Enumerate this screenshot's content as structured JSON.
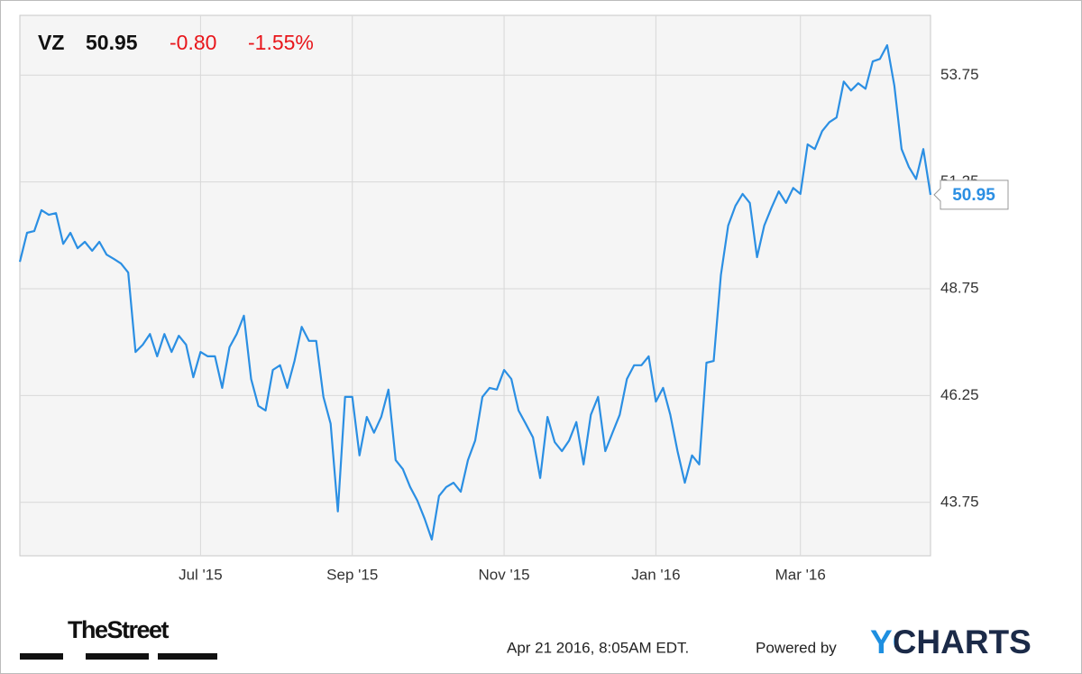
{
  "header": {
    "ticker": "VZ",
    "price": "50.95",
    "change": "-0.80",
    "change_pct": "-1.55%"
  },
  "footer": {
    "brand": "TheStreet",
    "timestamp": "Apr 21 2016, 8:05AM EDT.",
    "powered": "Powered by",
    "logo": "YCHARTS"
  },
  "chart_data": {
    "type": "line",
    "color": "#2b8fe3",
    "grid": true,
    "categories": [
      null,
      null,
      null,
      null,
      null,
      null,
      null,
      null,
      null,
      null,
      null,
      null,
      null,
      null,
      null,
      null,
      null,
      null,
      null,
      null,
      null,
      null,
      null,
      null,
      null,
      "Jul '15",
      null,
      null,
      null,
      null,
      null,
      null,
      null,
      null,
      null,
      null,
      null,
      null,
      null,
      null,
      null,
      null,
      null,
      null,
      null,
      null,
      "Sep '15",
      null,
      null,
      null,
      null,
      null,
      null,
      null,
      null,
      null,
      null,
      null,
      null,
      null,
      null,
      null,
      null,
      null,
      null,
      null,
      null,
      "Nov '15",
      null,
      null,
      null,
      null,
      null,
      null,
      null,
      null,
      null,
      null,
      null,
      null,
      null,
      null,
      null,
      null,
      null,
      null,
      null,
      null,
      "Jan '16",
      null,
      null,
      null,
      null,
      null,
      null,
      null,
      null,
      null,
      null,
      null,
      null,
      null,
      null,
      null,
      null,
      null,
      null,
      null,
      "Mar '16",
      null,
      null,
      null,
      null,
      null,
      null,
      null,
      null,
      null,
      null,
      null,
      null,
      null,
      null,
      null,
      null,
      null,
      null
    ],
    "values": [
      49.38,
      50.06,
      50.1,
      50.59,
      50.48,
      50.52,
      49.8,
      50.06,
      49.7,
      49.85,
      49.64,
      49.85,
      49.55,
      49.45,
      49.34,
      49.13,
      47.27,
      47.44,
      47.69,
      47.17,
      47.69,
      47.27,
      47.65,
      47.44,
      46.68,
      47.27,
      47.17,
      47.17,
      46.43,
      47.38,
      47.69,
      48.12,
      46.64,
      46.01,
      45.9,
      46.85,
      46.96,
      46.43,
      47.06,
      47.86,
      47.53,
      47.53,
      46.22,
      45.59,
      43.54,
      46.22,
      46.22,
      44.85,
      45.75,
      45.38,
      45.75,
      46.39,
      44.74,
      44.53,
      44.11,
      43.79,
      43.37,
      42.88,
      43.9,
      44.11,
      44.21,
      44.0,
      44.74,
      45.2,
      46.22,
      46.43,
      46.39,
      46.85,
      46.64,
      45.9,
      45.59,
      45.27,
      44.32,
      45.75,
      45.16,
      44.95,
      45.2,
      45.63,
      44.64,
      45.8,
      46.22,
      44.95,
      45.38,
      45.8,
      46.64,
      46.96,
      46.96,
      47.17,
      46.11,
      46.43,
      45.8,
      44.95,
      44.21,
      44.85,
      44.64,
      47.02,
      47.06,
      49.07,
      50.23,
      50.69,
      50.97,
      50.76,
      49.49,
      50.23,
      50.65,
      51.03,
      50.76,
      51.11,
      50.97,
      52.13,
      52.02,
      52.44,
      52.65,
      52.76,
      53.6,
      53.39,
      53.56,
      53.43,
      54.07,
      54.13,
      54.45,
      53.5,
      52.02,
      51.6,
      51.32,
      52.02,
      50.95
    ],
    "ylim": [
      42.5,
      55.15
    ],
    "yticks": [
      43.75,
      46.25,
      48.75,
      51.25,
      53.75
    ]
  }
}
